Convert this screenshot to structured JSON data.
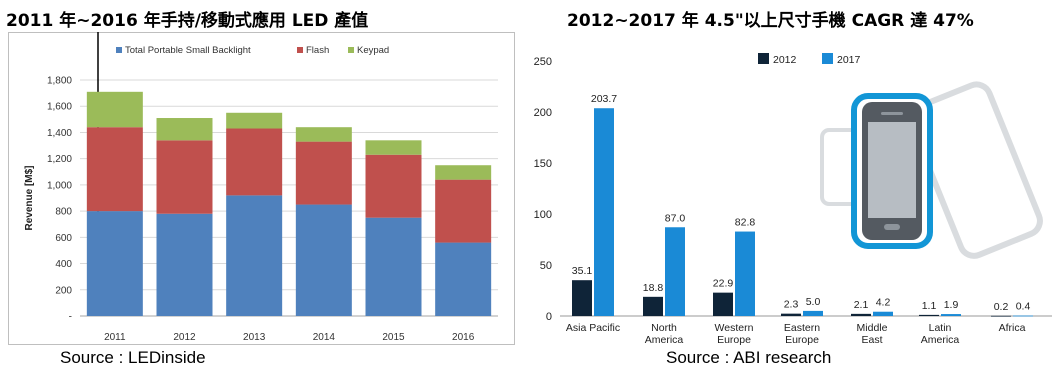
{
  "left": {
    "title": "2011 年~2016 年手持/移動式應用 LED 產值",
    "source": "Source : LEDinside"
  },
  "right": {
    "title": "2012~2017 年 4.5\"以上尺寸手機 CAGR 達 47%",
    "source": "Source : ABI research"
  },
  "colors": {
    "backlight": "#4f81bd",
    "flash": "#c0504d",
    "keypad": "#9bbb59",
    "y2012": "#0f2438",
    "y2017": "#1a8ad6",
    "phone_frame": "#1296d6"
  },
  "chart_data": [
    {
      "type": "bar",
      "stacked": true,
      "categories": [
        "2011",
        "2012",
        "2013",
        "2014",
        "2015",
        "2016"
      ],
      "series": [
        {
          "name": "Total Portable Small Backlight",
          "values": [
            800,
            780,
            920,
            850,
            750,
            560
          ]
        },
        {
          "name": "Flash",
          "values": [
            640,
            560,
            510,
            480,
            480,
            480
          ]
        },
        {
          "name": "Keypad",
          "values": [
            270,
            170,
            120,
            110,
            110,
            110
          ]
        }
      ],
      "ylabel": "Revenue [M$]",
      "yticks": [
        "-",
        "200",
        "400",
        "600",
        "800",
        "1,000",
        "1,200",
        "1,400",
        "1,600",
        "1,800"
      ],
      "ylim": [
        0,
        1800
      ],
      "grid": true,
      "legend": "top"
    },
    {
      "type": "bar",
      "categories": [
        [
          "Asia Pacific"
        ],
        [
          "North",
          "America"
        ],
        [
          "Western",
          "Europe"
        ],
        [
          "Eastern",
          "Europe"
        ],
        [
          "Middle",
          "East"
        ],
        [
          "Latin",
          "America"
        ],
        [
          "Africa"
        ]
      ],
      "series": [
        {
          "name": "2012",
          "values": [
            35.1,
            18.8,
            22.9,
            2.3,
            2.1,
            1.1,
            0.2
          ],
          "labels": [
            "35.1",
            "18.8",
            "22.9",
            "2.3",
            "2.1",
            "1.1",
            "0.2"
          ]
        },
        {
          "name": "2017",
          "values": [
            203.7,
            87.0,
            82.8,
            5.0,
            4.2,
            1.9,
            0.4
          ],
          "labels": [
            "203.7",
            "87.0",
            "82.8",
            "5.0",
            "4.2",
            "1.9",
            "0.4"
          ]
        }
      ],
      "yticks": [
        "0",
        "50",
        "100",
        "150",
        "200",
        "250"
      ],
      "ylim": [
        0,
        250
      ],
      "grid": false,
      "legend": "top"
    }
  ]
}
